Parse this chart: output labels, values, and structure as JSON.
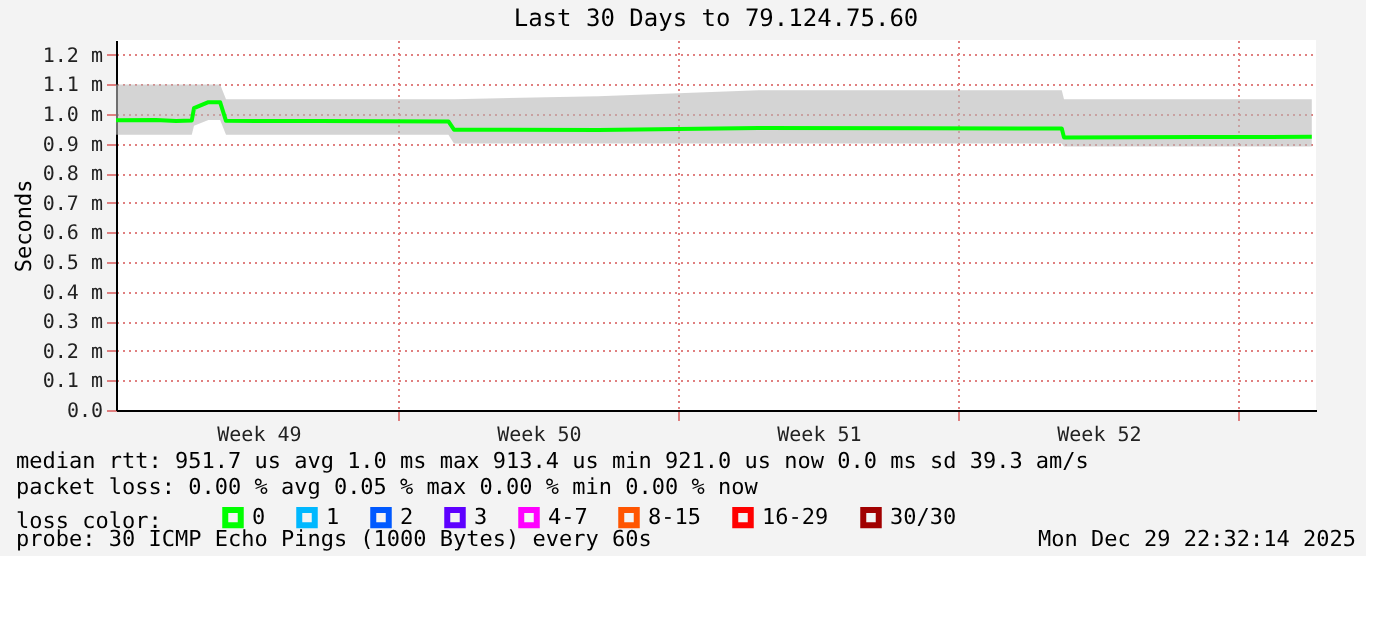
{
  "chart_data": {
    "type": "line",
    "title": "Last 30 Days to 79.124.75.60",
    "ylabel": "Seconds",
    "x": [
      "2025-11-29T22:32",
      "2025-11-30T22:32",
      "2025-12-01T10:32",
      "2025-12-01T20:00",
      "2025-12-01T21:20",
      "2025-12-02T06:00",
      "2025-12-02T13:00",
      "2025-12-02T16:32",
      "2025-12-05T00:00",
      "2025-12-08T06:00",
      "2025-12-08T09:20",
      "2025-12-12T00:00",
      "2025-12-16T00:00",
      "2025-12-20T00:00",
      "2025-12-23T14:00",
      "2025-12-23T15:20",
      "2025-12-27T00:00",
      "2025-12-29T20:00"
    ],
    "series": [
      {
        "name": "0",
        "color": "#00ff00",
        "values": [
          0.979,
          0.98,
          0.976,
          0.978,
          1.02,
          1.04,
          1.04,
          0.977,
          0.976,
          0.975,
          0.947,
          0.946,
          0.953,
          0.952,
          0.951,
          0.921,
          0.922,
          0.923
        ],
        "lower": [
          0.93,
          0.93,
          0.93,
          0.93,
          0.96,
          0.98,
          0.98,
          0.93,
          0.93,
          0.93,
          0.9,
          0.9,
          0.9,
          0.9,
          0.9,
          0.89,
          0.89,
          0.89
        ],
        "upper": [
          1.1,
          1.1,
          1.1,
          1.1,
          1.1,
          1.1,
          1.1,
          1.05,
          1.05,
          1.05,
          1.05,
          1.06,
          1.08,
          1.08,
          1.08,
          1.05,
          1.05,
          1.05
        ]
      },
      {
        "name": "1",
        "color": "#00b8ff",
        "values": [
          null,
          null,
          null,
          null,
          null,
          null,
          null,
          null,
          null,
          null,
          null,
          null,
          null,
          null,
          null,
          null,
          null,
          null
        ]
      },
      {
        "name": "2",
        "color": "#0059ff",
        "values": [
          null,
          null,
          null,
          null,
          null,
          null,
          null,
          null,
          null,
          null,
          null,
          null,
          null,
          null,
          null,
          null,
          null,
          null
        ]
      },
      {
        "name": "3",
        "color": "#5e00ff",
        "values": [
          null,
          null,
          null,
          null,
          null,
          null,
          null,
          null,
          null,
          null,
          null,
          null,
          null,
          null,
          null,
          null,
          null,
          null
        ]
      },
      {
        "name": "4-7",
        "color": "#ff00ff",
        "values": [
          null,
          null,
          null,
          null,
          null,
          null,
          null,
          null,
          null,
          null,
          null,
          null,
          null,
          null,
          null,
          null,
          null,
          null
        ]
      },
      {
        "name": "8-15",
        "color": "#ff5500",
        "values": [
          null,
          null,
          null,
          null,
          null,
          null,
          null,
          null,
          null,
          null,
          null,
          null,
          null,
          null,
          null,
          null,
          null,
          null
        ]
      },
      {
        "name": "16-29",
        "color": "#ff0000",
        "values": [
          null,
          null,
          null,
          null,
          null,
          null,
          null,
          null,
          null,
          null,
          null,
          null,
          null,
          null,
          null,
          null,
          null,
          null
        ]
      },
      {
        "name": "30/30",
        "color": "#a10000",
        "values": [
          null,
          null,
          null,
          null,
          null,
          null,
          null,
          null,
          null,
          null,
          null,
          null,
          null,
          null,
          null,
          null,
          null,
          null
        ]
      }
    ],
    "xlim": [
      "2025-11-29T22:32",
      "2025-12-29T22:32"
    ],
    "xticks": [
      {
        "value": "2025-12-03T12:00",
        "label": "Week 49"
      },
      {
        "value": "2025-12-07",
        "label": null
      },
      {
        "value": "2025-12-10T12:00",
        "label": "Week 50"
      },
      {
        "value": "2025-12-14",
        "label": null
      },
      {
        "value": "2025-12-17T12:00",
        "label": "Week 51"
      },
      {
        "value": "2025-12-21",
        "label": null
      },
      {
        "value": "2025-12-24T12:00",
        "label": "Week 52"
      },
      {
        "value": "2025-12-28",
        "label": null
      }
    ],
    "ylim": [
      0,
      1.25
    ],
    "yticks": [
      {
        "value": 0,
        "label": "0.0"
      },
      {
        "value": 0.1,
        "label": "0.1 m"
      },
      {
        "value": 0.2,
        "label": "0.2 m"
      },
      {
        "value": 0.3,
        "label": "0.3 m"
      },
      {
        "value": 0.4,
        "label": "0.4 m"
      },
      {
        "value": 0.5,
        "label": "0.5 m"
      },
      {
        "value": 0.6,
        "label": "0.6 m"
      },
      {
        "value": 0.7,
        "label": "0.7 m"
      },
      {
        "value": 0.8,
        "label": "0.8 m"
      },
      {
        "value": 0.9,
        "label": "0.9 m"
      },
      {
        "value": 1.0,
        "label": "1.0 m"
      },
      {
        "value": 1.1,
        "label": "1.1 m"
      },
      {
        "value": 1.2,
        "label": "1.2 m"
      }
    ],
    "grid": true,
    "legend": "bottom",
    "legend_title": "loss color:",
    "marker": "none",
    "line_style": "solid",
    "annotations": [
      "median rtt:  951.7 us avg  1.0 ms max  913.4 us min  921.0 us now  0.0 ms sd  39.3   am/s",
      "packet loss: 0.00 % avg  0.05 % max  0.00 % min  0.00 % now",
      "probe:       30 ICMP Echo Pings (1000 Bytes) every 60s",
      "Mon Dec 29 22:32:14 2025"
    ]
  }
}
